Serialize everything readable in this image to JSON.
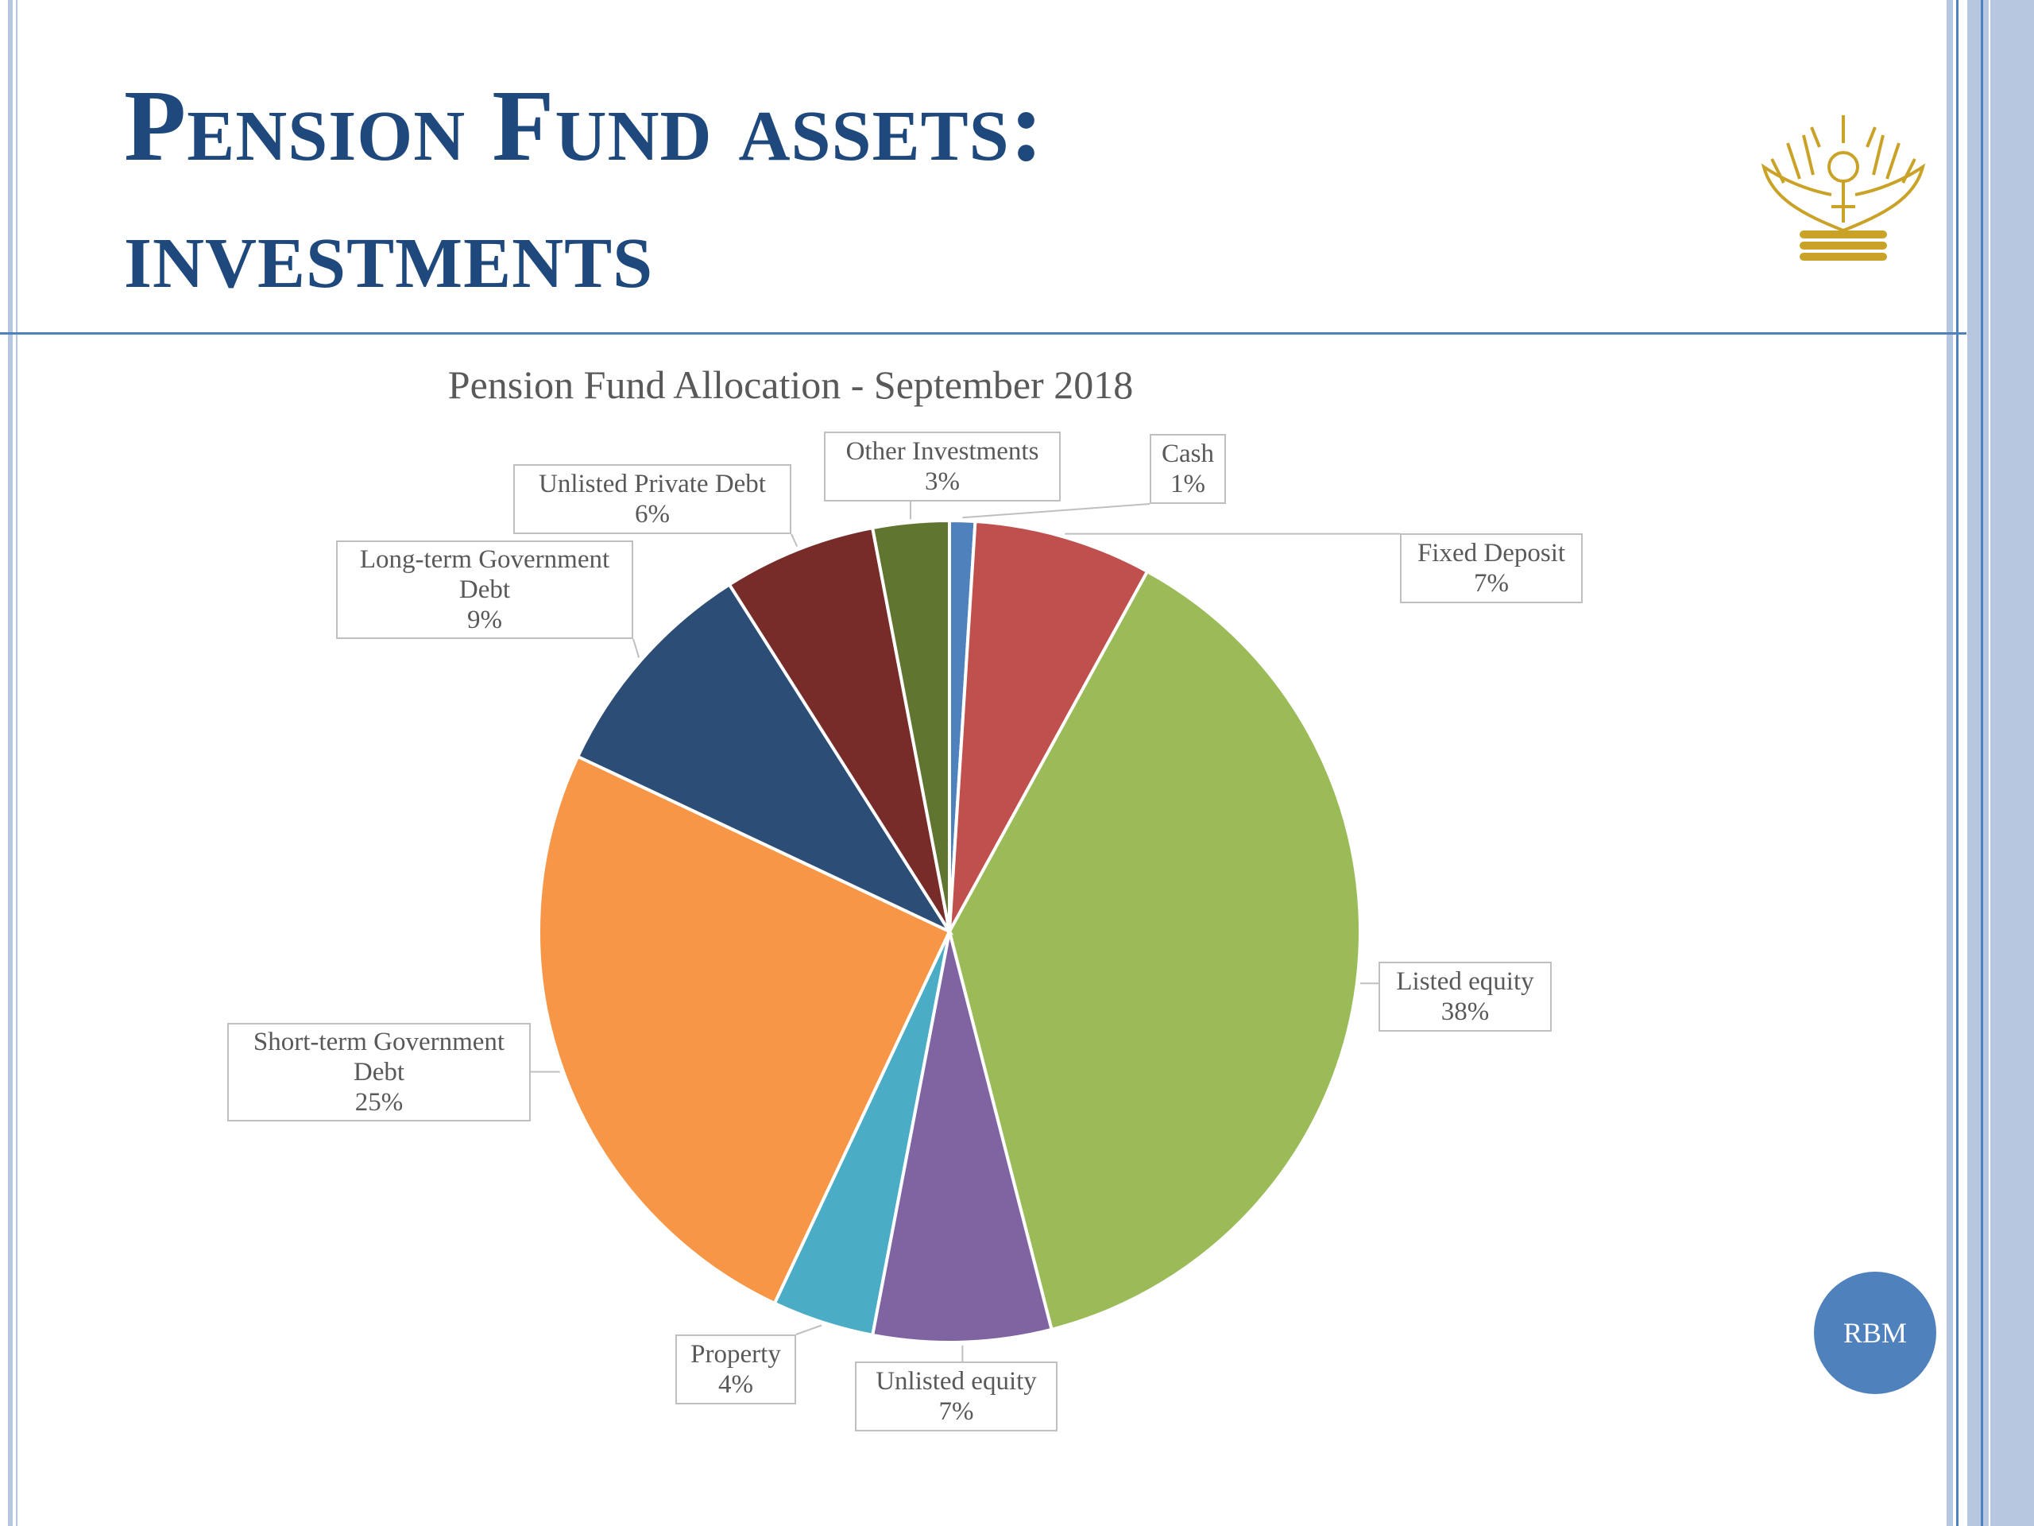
{
  "slide": {
    "title_line1": "Pension Fund assets:",
    "title_line2": "investments",
    "badge": "RBM",
    "logo": "reserve-bank-eagle-crest"
  },
  "colors": {
    "title": "#1F497D",
    "frame": "#4F81BD",
    "frame_light": "#B8C7E0",
    "badge": "#4F81BD",
    "logo_gold": "#C9A227"
  },
  "chart_data": {
    "type": "pie",
    "title": "Pension Fund Allocation - September 2018",
    "start_angle_deg": 0,
    "direction": "clockwise",
    "slices": [
      {
        "name": "Cash",
        "value": 1,
        "label": "1%",
        "color": "#4F81BD"
      },
      {
        "name": "Fixed Deposit",
        "value": 7,
        "label": "7%",
        "color": "#C0504D"
      },
      {
        "name": "Listed equity",
        "value": 38,
        "label": "38%",
        "color": "#9BBB59"
      },
      {
        "name": "Unlisted equity",
        "value": 7,
        "label": "7%",
        "color": "#8064A2"
      },
      {
        "name": "Property",
        "value": 4,
        "label": "4%",
        "color": "#4BACC6"
      },
      {
        "name": "Short-term Government Debt",
        "value": 25,
        "label": "25%",
        "color": "#F79646"
      },
      {
        "name": "Long-term Government Debt",
        "value": 9,
        "label": "9%",
        "color": "#2C4D75"
      },
      {
        "name": "Unlisted Private Debt",
        "value": 6,
        "label": "6%",
        "color": "#772C2A"
      },
      {
        "name": "Other Investments",
        "value": 3,
        "label": "3%",
        "color": "#5F7530"
      }
    ]
  }
}
